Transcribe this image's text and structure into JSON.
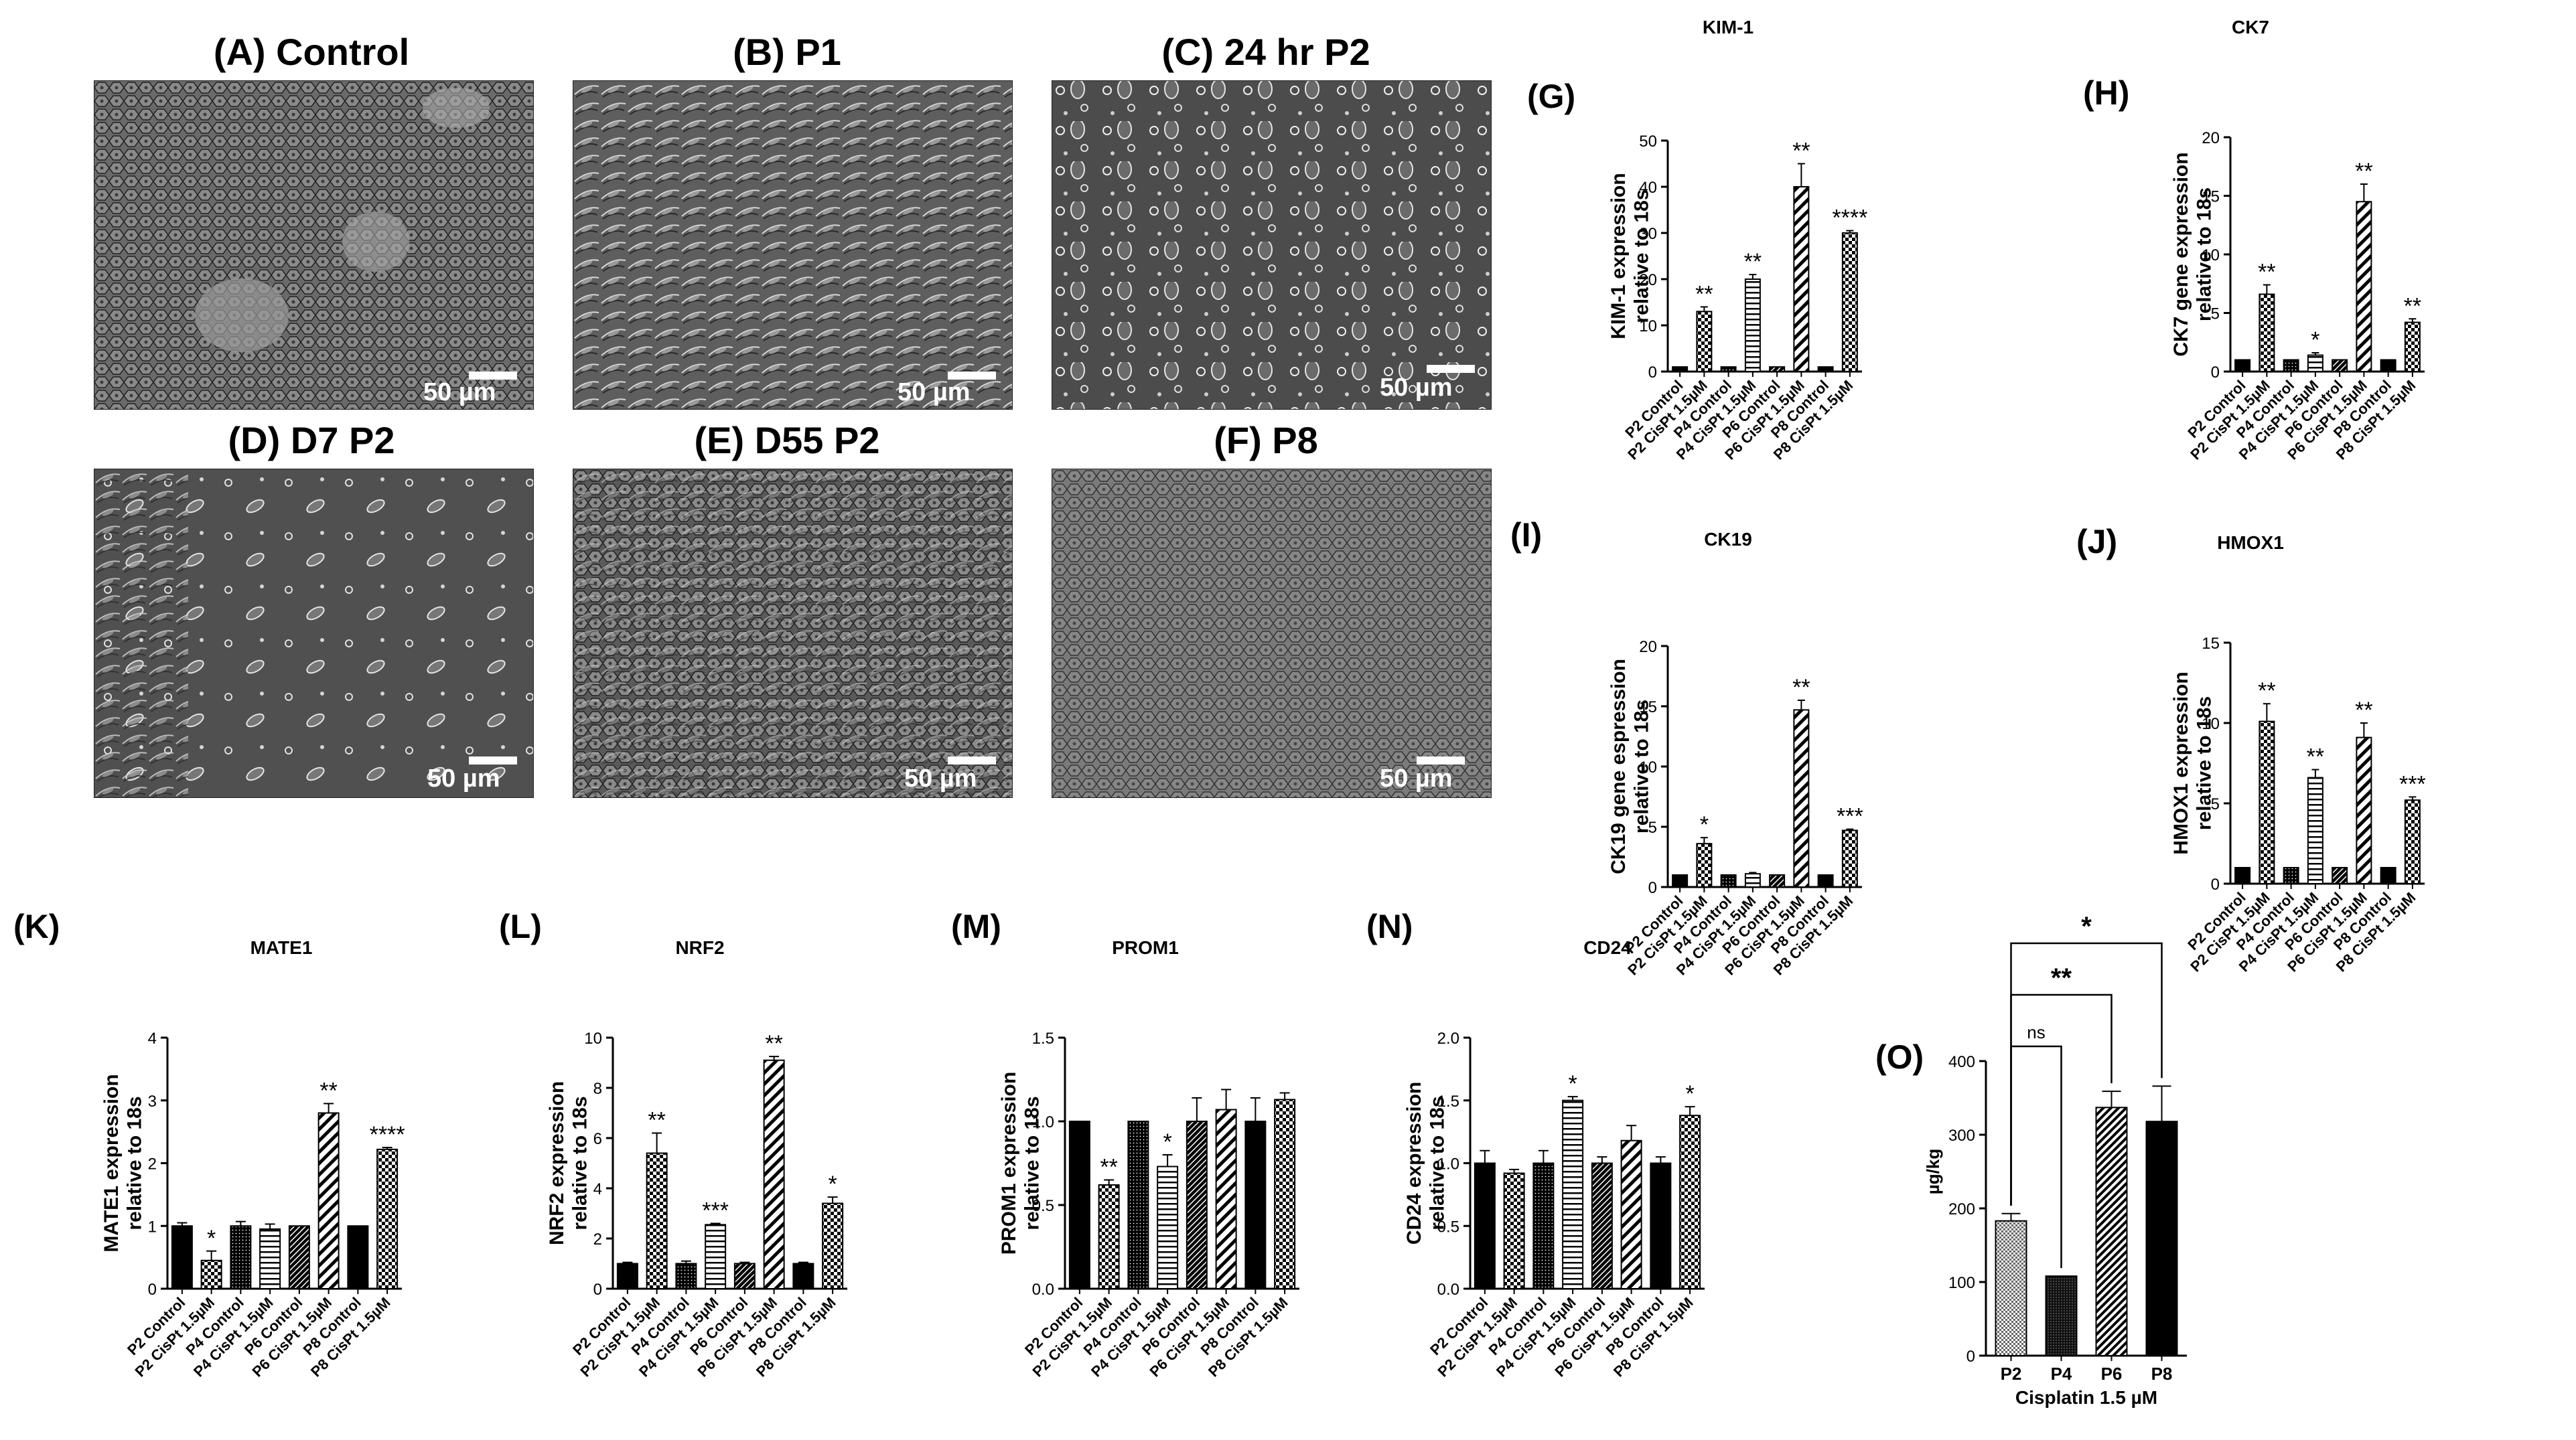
{
  "panels": {
    "A": {
      "title": "(A) Control",
      "scale": "50 µm"
    },
    "B": {
      "title": "(B) P1",
      "scale": "50 µm"
    },
    "C": {
      "title": "(C) 24 hr P2",
      "scale": "50 µm"
    },
    "D": {
      "title": "(D) D7 P2",
      "scale": "50 µm"
    },
    "E": {
      "title": "(E) D55 P2",
      "scale": "50 µm"
    },
    "F": {
      "title": "(F) P8",
      "scale": "50 µm"
    }
  },
  "labels": {
    "G": "(G)",
    "H": "(H)",
    "I": "(I)",
    "J": "(J)",
    "K": "(K)",
    "L": "(L)",
    "M": "(M)",
    "N": "(N)",
    "O": "(O)"
  },
  "colors": {
    "black": "#000000",
    "bar_outline": "#000000",
    "microscope_bg": "#5a5a5a"
  },
  "chart_data": [
    {
      "id": "G",
      "type": "bar",
      "title": "KIM-1",
      "ylabel": "KIM-1 expression relative to 18s",
      "ylim": [
        0,
        50
      ],
      "yticks": [
        0,
        10,
        20,
        30,
        40,
        50
      ],
      "categories": [
        "P2 Control",
        "P2 CisPt 1.5µM",
        "P4 Control",
        "P4 CisPt 1.5µM",
        "P6 Control",
        "P6 CisPt 1.5µM",
        "P8 Control",
        "P8 CisPt 1.5µM"
      ],
      "values": [
        1,
        13,
        1,
        20,
        1,
        40,
        1,
        30
      ],
      "errors": [
        0,
        1,
        0,
        1,
        0,
        5,
        0,
        0.5
      ],
      "sig": [
        "",
        "**",
        "",
        "**",
        "",
        "**",
        "",
        "****"
      ]
    },
    {
      "id": "H",
      "type": "bar",
      "title": "CK7",
      "ylabel": "CK7 gene expression relative to 18s",
      "ylim": [
        0,
        20
      ],
      "yticks": [
        0,
        5,
        10,
        15,
        20
      ],
      "categories": [
        "P2 Control",
        "P2 CisPt 1.5µM",
        "P4 Control",
        "P4 CisPt 1.5µM",
        "P6 Control",
        "P6 CisPt 1.5µM",
        "P8 Control",
        "P8 CisPt 1.5µM"
      ],
      "values": [
        1,
        6.6,
        1,
        1.4,
        1,
        14.5,
        1,
        4.2
      ],
      "errors": [
        0,
        0.8,
        0,
        0.2,
        0,
        1.5,
        0,
        0.3
      ],
      "sig": [
        "",
        "**",
        "",
        "*",
        "",
        "**",
        "",
        "**"
      ]
    },
    {
      "id": "I",
      "type": "bar",
      "title": "CK19",
      "ylabel": "CK19 gene espression relative to 18s",
      "ylim": [
        0,
        20
      ],
      "yticks": [
        0,
        5,
        10,
        15,
        20
      ],
      "categories": [
        "P2 Control",
        "P2 CisPt 1.5µM",
        "P4 Control",
        "P4 CisPt 1.5µM",
        "P6 Control",
        "P6 CisPt 1.5µM",
        "P8 Control",
        "P8 CisPt 1.5µM"
      ],
      "values": [
        1,
        3.6,
        1,
        1.1,
        1,
        14.7,
        1,
        4.7
      ],
      "errors": [
        0,
        0.5,
        0,
        0.1,
        0,
        0.8,
        0,
        0.1
      ],
      "sig": [
        "",
        "*",
        "",
        "",
        "",
        "**",
        "",
        "***"
      ]
    },
    {
      "id": "J",
      "type": "bar",
      "title": "HMOX1",
      "ylabel": "HMOX1 expression relative to 18s",
      "ylim": [
        0,
        15
      ],
      "yticks": [
        0,
        5,
        10,
        15
      ],
      "categories": [
        "P2 Control",
        "P2 CisPt 1.5µM",
        "P4 Control",
        "P4 CisPt 1.5µM",
        "P6 Control",
        "P6 CisPt 1.5µM",
        "P8 Control",
        "P8 CisPt 1.5µM"
      ],
      "values": [
        1,
        10.1,
        1,
        6.6,
        1,
        9.1,
        1,
        5.2
      ],
      "errors": [
        0,
        1.1,
        0,
        0.5,
        0,
        0.9,
        0,
        0.2
      ],
      "sig": [
        "",
        "**",
        "",
        "**",
        "",
        "**",
        "",
        "***"
      ]
    },
    {
      "id": "K",
      "type": "bar",
      "title": "MATE1",
      "ylabel": "MATE1 expression relative to 18s",
      "ylim": [
        0,
        4
      ],
      "yticks": [
        0,
        1,
        2,
        3,
        4
      ],
      "categories": [
        "P2 Control",
        "P2 CisPt 1.5µM",
        "P4 Control",
        "P4 CisPt 1.5µM",
        "P6 Control",
        "P6 CisPt 1.5µM",
        "P8 Control",
        "P8 CisPt 1.5µM"
      ],
      "values": [
        1,
        0.45,
        1,
        0.95,
        1,
        2.8,
        1,
        2.22
      ],
      "errors": [
        0.05,
        0.15,
        0.07,
        0.08,
        0,
        0.15,
        0,
        0.03
      ],
      "sig": [
        "",
        "*",
        "",
        "",
        "",
        "**",
        "",
        "****"
      ]
    },
    {
      "id": "L",
      "type": "bar",
      "title": "NRF2",
      "ylabel": "NRF2 expression relative to 18s",
      "ylim": [
        0,
        10
      ],
      "yticks": [
        0,
        2,
        4,
        6,
        8,
        10
      ],
      "categories": [
        "P2 Control",
        "P2 CisPt 1.5µM",
        "P4 Control",
        "P4 CisPt 1.5µM",
        "P6 Control",
        "P6 CisPt 1.5µM",
        "P8 Control",
        "P8 CisPt 1.5µM"
      ],
      "values": [
        1,
        5.4,
        1,
        2.55,
        1,
        9.1,
        1,
        3.4
      ],
      "errors": [
        0.05,
        0.8,
        0.1,
        0.05,
        0.05,
        0.15,
        0.05,
        0.25
      ],
      "sig": [
        "",
        "**",
        "",
        "***",
        "",
        "**",
        "",
        "*"
      ]
    },
    {
      "id": "M",
      "type": "bar",
      "title": "PROM1",
      "ylabel": "PROM1 expression relative to 18s",
      "ylim": [
        0,
        1.5
      ],
      "yticks": [
        0.0,
        0.5,
        1.0,
        1.5
      ],
      "categories": [
        "P2 Control",
        "P2 CisPt 1.5µM",
        "P4 Control",
        "P4 CisPt 1.5µM",
        "P6 Control",
        "P6 CisPt 1.5µM",
        "P8 Control",
        "P8 CisPt 1.5µM"
      ],
      "values": [
        1.0,
        0.62,
        1.0,
        0.73,
        1.0,
        1.07,
        1.0,
        1.13
      ],
      "errors": [
        0,
        0.03,
        0,
        0.07,
        0.14,
        0.12,
        0.14,
        0.04
      ],
      "sig": [
        "",
        "**",
        "",
        "*",
        "",
        "",
        "",
        ""
      ]
    },
    {
      "id": "N",
      "type": "bar",
      "title": "CD24",
      "ylabel": "CD24 expression relative to 18s",
      "ylim": [
        0,
        2.0
      ],
      "yticks": [
        0.0,
        0.5,
        1.0,
        1.5,
        2.0
      ],
      "categories": [
        "P2 Control",
        "P2 CisPt 1.5µM",
        "P4 Control",
        "P4 CisPt 1.5µM",
        "P6 Control",
        "P6 CisPt 1.5µM",
        "P8 Control",
        "P8 CisPt 1.5µM"
      ],
      "values": [
        1.0,
        0.92,
        1.0,
        1.5,
        1.0,
        1.18,
        1.0,
        1.38
      ],
      "errors": [
        0.1,
        0.03,
        0.1,
        0.03,
        0.05,
        0.12,
        0.05,
        0.07
      ],
      "sig": [
        "",
        "",
        "",
        "*",
        "",
        "",
        "",
        "*"
      ]
    },
    {
      "id": "O",
      "type": "bar",
      "title": "",
      "ylabel": "µg/kg",
      "xlabel": "Cisplatin 1.5 µM",
      "ylim": [
        0,
        400
      ],
      "yticks": [
        0,
        100,
        200,
        300,
        400
      ],
      "categories": [
        "P2",
        "P4",
        "P6",
        "P8"
      ],
      "values": [
        183,
        108,
        337,
        318
      ],
      "errors": [
        10,
        0,
        22,
        48
      ],
      "brackets": [
        {
          "from": 0,
          "to": 1,
          "label": "ns"
        },
        {
          "from": 0,
          "to": 2,
          "label": "**"
        },
        {
          "from": 0,
          "to": 3,
          "label": "*"
        }
      ]
    }
  ]
}
